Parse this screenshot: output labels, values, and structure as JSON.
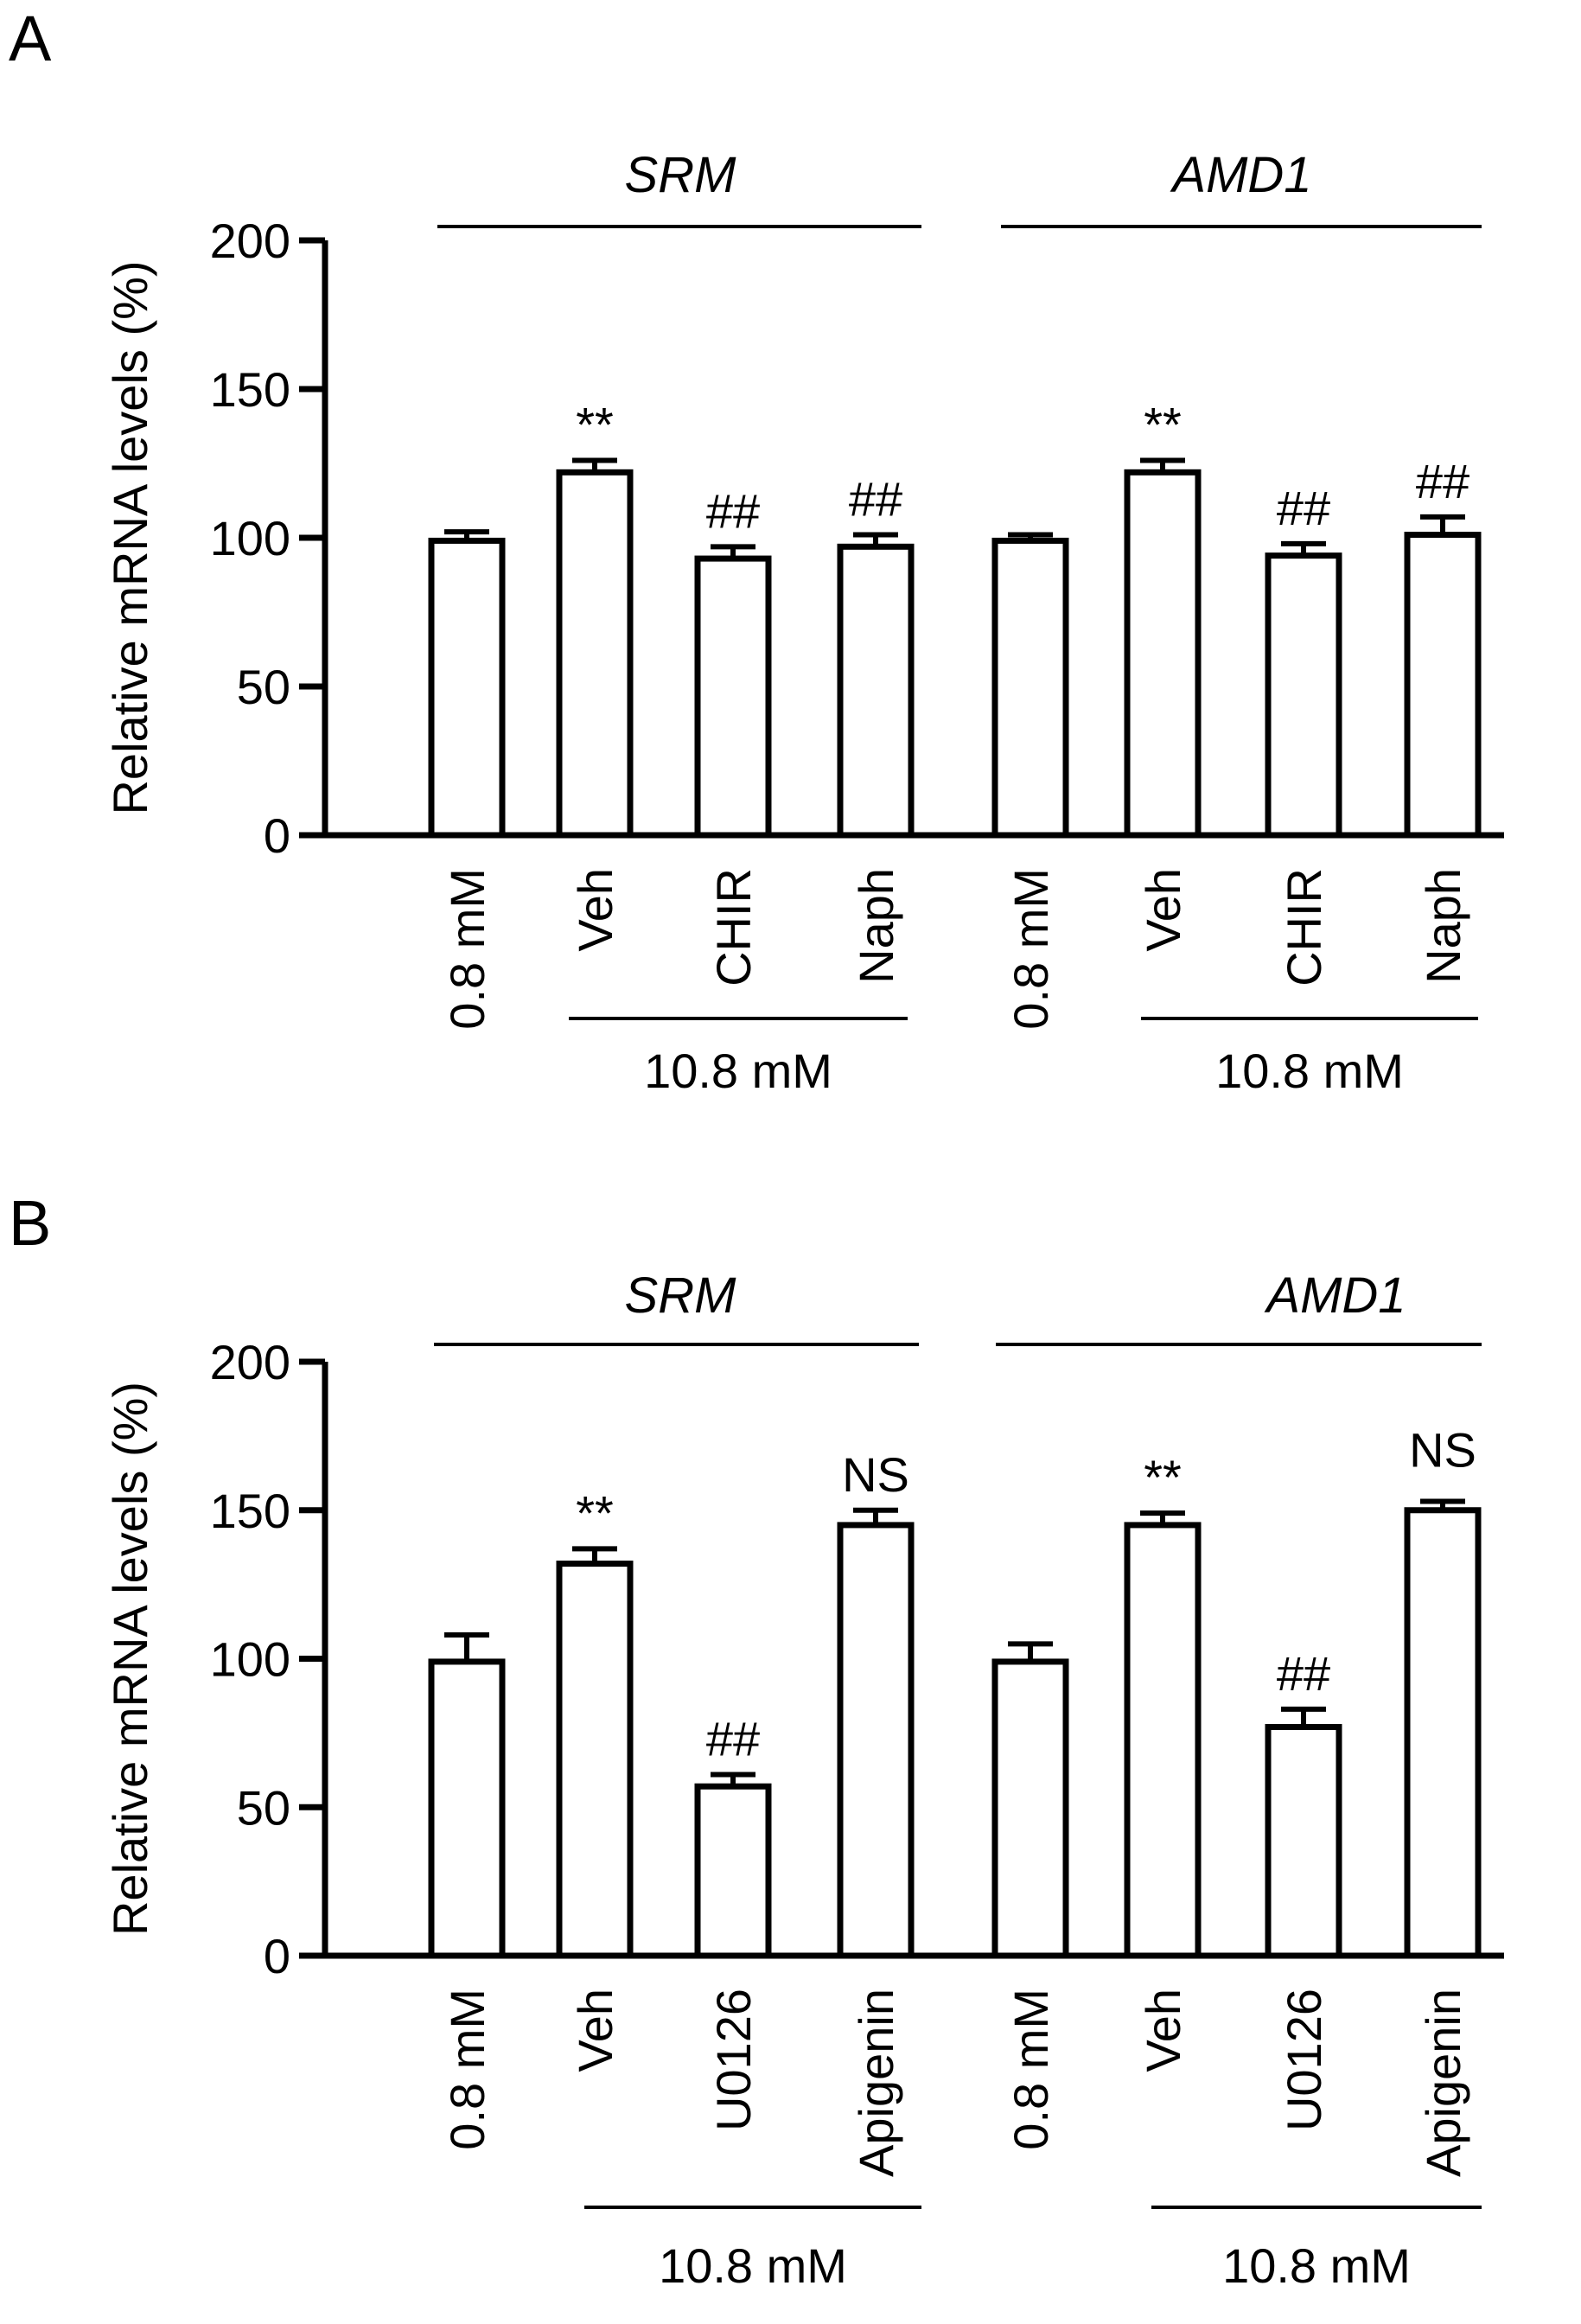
{
  "chart_data": [
    {
      "panel": "A",
      "type": "bar",
      "ylabel": "Relative mRNA levels (%)",
      "ylim": [
        0,
        200
      ],
      "yticks": [
        0,
        50,
        100,
        150,
        200
      ],
      "groups": [
        {
          "gene": "SRM",
          "concentration_label": "10.8 mM",
          "bars": [
            {
              "category": "0.8 mM",
              "value": 99,
              "error": 3,
              "sig": ""
            },
            {
              "category": "Veh",
              "value": 122,
              "error": 4,
              "sig": "**"
            },
            {
              "category": "CHIR",
              "value": 93,
              "error": 4,
              "sig": "##"
            },
            {
              "category": "Naph",
              "value": 97,
              "error": 4,
              "sig": "##"
            }
          ]
        },
        {
          "gene": "AMD1",
          "concentration_label": "10.8 mM",
          "bars": [
            {
              "category": "0.8 mM",
              "value": 99,
              "error": 2,
              "sig": ""
            },
            {
              "category": "Veh",
              "value": 122,
              "error": 4,
              "sig": "**"
            },
            {
              "category": "CHIR",
              "value": 94,
              "error": 4,
              "sig": "##"
            },
            {
              "category": "Naph",
              "value": 101,
              "error": 6,
              "sig": "##"
            }
          ]
        }
      ]
    },
    {
      "panel": "B",
      "type": "bar",
      "ylabel": "Relative mRNA levels (%)",
      "ylim": [
        0,
        200
      ],
      "yticks": [
        0,
        50,
        100,
        150,
        200
      ],
      "groups": [
        {
          "gene": "SRM",
          "concentration_label": "10.8 mM",
          "bars": [
            {
              "category": "0.8 mM",
              "value": 99,
              "error": 9,
              "sig": ""
            },
            {
              "category": "Veh",
              "value": 132,
              "error": 5,
              "sig": "**"
            },
            {
              "category": "U0126",
              "value": 57,
              "error": 4,
              "sig": "##"
            },
            {
              "category": "Apigenin",
              "value": 145,
              "error": 5,
              "sig": "NS"
            }
          ]
        },
        {
          "gene": "AMD1",
          "concentration_label": "10.8 mM",
          "bars": [
            {
              "category": "0.8 mM",
              "value": 99,
              "error": 6,
              "sig": ""
            },
            {
              "category": "Veh",
              "value": 145,
              "error": 4,
              "sig": "**"
            },
            {
              "category": "U0126",
              "value": 77,
              "error": 6,
              "sig": "##"
            },
            {
              "category": "Apigenin",
              "value": 150,
              "error": 3,
              "sig": ""
            }
          ]
        }
      ]
    }
  ],
  "annotations": {
    "panelB_amd1_apigenin_label": "NS"
  }
}
